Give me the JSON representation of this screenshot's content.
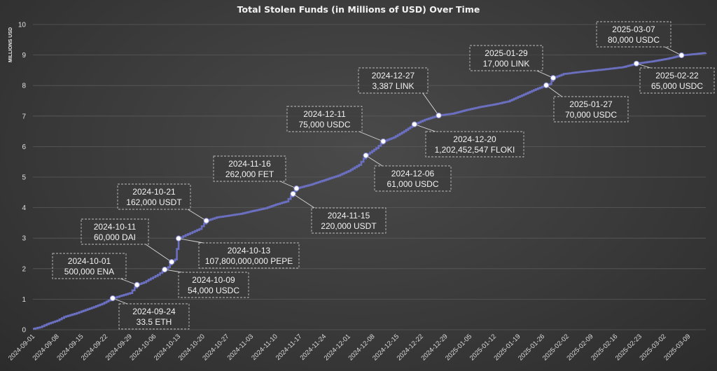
{
  "chart_data": {
    "type": "line",
    "title": "Total Stolen Funds (in Millions of USD) Over Time",
    "ylabel": "MILLIONS USD",
    "xlabel": "",
    "ylim": [
      0,
      10
    ],
    "yticks": [
      0,
      1,
      2,
      3,
      4,
      5,
      6,
      7,
      8,
      9,
      10
    ],
    "xlim": [
      "2024-09-01",
      "2025-03-14"
    ],
    "xticks": [
      "2024-09-01",
      "2024-09-08",
      "2024-09-15",
      "2024-09-22",
      "2024-09-29",
      "2024-10-06",
      "2024-10-13",
      "2024-10-20",
      "2024-10-27",
      "2024-11-03",
      "2024-11-10",
      "2024-11-17",
      "2024-11-24",
      "2024-12-01",
      "2024-12-08",
      "2024-12-15",
      "2024-12-22",
      "2024-12-29",
      "2025-01-05",
      "2025-01-12",
      "2025-01-19",
      "2025-01-26",
      "2025-02-02",
      "2025-02-09",
      "2025-02-16",
      "2025-02-23",
      "2025-03-02",
      "2025-03-09"
    ],
    "grid": true,
    "line_color": "#6b6fc0",
    "series": [
      {
        "points": [
          [
            "2024-09-01",
            0.03
          ],
          [
            "2024-09-03",
            0.08
          ],
          [
            "2024-09-05",
            0.18
          ],
          [
            "2024-09-08",
            0.3
          ],
          [
            "2024-09-10",
            0.42
          ],
          [
            "2024-09-13",
            0.52
          ],
          [
            "2024-09-15",
            0.6
          ],
          [
            "2024-09-18",
            0.72
          ],
          [
            "2024-09-21",
            0.85
          ],
          [
            "2024-09-24",
            1.03
          ],
          [
            "2024-09-26",
            1.1
          ],
          [
            "2024-09-29",
            1.2
          ],
          [
            "2024-10-01",
            1.47
          ],
          [
            "2024-10-03",
            1.55
          ],
          [
            "2024-10-05",
            1.68
          ],
          [
            "2024-10-07",
            1.8
          ],
          [
            "2024-10-09",
            1.97
          ],
          [
            "2024-10-10",
            2.05
          ],
          [
            "2024-10-11",
            2.22
          ],
          [
            "2024-10-12",
            2.3
          ],
          [
            "2024-10-13",
            2.99
          ],
          [
            "2024-10-15",
            3.1
          ],
          [
            "2024-10-17",
            3.2
          ],
          [
            "2024-10-19",
            3.3
          ],
          [
            "2024-10-21",
            3.57
          ],
          [
            "2024-10-24",
            3.68
          ],
          [
            "2024-10-27",
            3.73
          ],
          [
            "2024-10-31",
            3.8
          ],
          [
            "2024-11-03",
            3.88
          ],
          [
            "2024-11-07",
            3.98
          ],
          [
            "2024-11-10",
            4.1
          ],
          [
            "2024-11-13",
            4.2
          ],
          [
            "2024-11-15",
            4.45
          ],
          [
            "2024-11-16",
            4.63
          ],
          [
            "2024-11-20",
            4.75
          ],
          [
            "2024-11-24",
            4.9
          ],
          [
            "2024-11-28",
            5.05
          ],
          [
            "2024-12-01",
            5.2
          ],
          [
            "2024-12-04",
            5.4
          ],
          [
            "2024-12-06",
            5.71
          ],
          [
            "2024-12-09",
            5.95
          ],
          [
            "2024-12-11",
            6.17
          ],
          [
            "2024-12-14",
            6.3
          ],
          [
            "2024-12-17",
            6.5
          ],
          [
            "2024-12-20",
            6.73
          ],
          [
            "2024-12-23",
            6.88
          ],
          [
            "2024-12-27",
            7.02
          ],
          [
            "2024-12-31",
            7.08
          ],
          [
            "2025-01-04",
            7.2
          ],
          [
            "2025-01-08",
            7.3
          ],
          [
            "2025-01-12",
            7.38
          ],
          [
            "2025-01-16",
            7.48
          ],
          [
            "2025-01-20",
            7.68
          ],
          [
            "2025-01-24",
            7.88
          ],
          [
            "2025-01-27",
            8.01
          ],
          [
            "2025-01-28",
            8.05
          ],
          [
            "2025-01-29",
            8.25
          ],
          [
            "2025-02-01",
            8.38
          ],
          [
            "2025-02-06",
            8.45
          ],
          [
            "2025-02-12",
            8.52
          ],
          [
            "2025-02-18",
            8.6
          ],
          [
            "2025-02-22",
            8.72
          ],
          [
            "2025-02-27",
            8.8
          ],
          [
            "2025-03-03",
            8.88
          ],
          [
            "2025-03-07",
            8.99
          ],
          [
            "2025-03-14",
            9.07
          ]
        ]
      }
    ],
    "annotations": [
      {
        "date": "2024-09-24",
        "y": 1.03,
        "line1": "2024-09-24",
        "line2": "33.5 ETH"
      },
      {
        "date": "2024-10-01",
        "y": 1.47,
        "line1": "2024-10-01",
        "line2": "500,000 ENA"
      },
      {
        "date": "2024-10-09",
        "y": 1.97,
        "line1": "2024-10-09",
        "line2": "54,000 USDC"
      },
      {
        "date": "2024-10-11",
        "y": 2.22,
        "line1": "2024-10-11",
        "line2": "60,000 DAI"
      },
      {
        "date": "2024-10-13",
        "y": 2.99,
        "line1": "2024-10-13",
        "line2": "107,800,000,000 PEPE"
      },
      {
        "date": "2024-10-21",
        "y": 3.57,
        "line1": "2024-10-21",
        "line2": "162,000 USDT"
      },
      {
        "date": "2024-11-15",
        "y": 4.45,
        "line1": "2024-11-15",
        "line2": "220,000 USDT"
      },
      {
        "date": "2024-11-16",
        "y": 4.63,
        "line1": "2024-11-16",
        "line2": "262,000 FET"
      },
      {
        "date": "2024-12-06",
        "y": 5.71,
        "line1": "2024-12-06",
        "line2": "61,000 USDC"
      },
      {
        "date": "2024-12-11",
        "y": 6.17,
        "line1": "2024-12-11",
        "line2": "75,000 USDC"
      },
      {
        "date": "2024-12-20",
        "y": 6.73,
        "line1": "2024-12-20",
        "line2": "1,202,452,547 FLOKI"
      },
      {
        "date": "2024-12-27",
        "y": 7.02,
        "line1": "2024-12-27",
        "line2": "3,387 LINK"
      },
      {
        "date": "2025-01-27",
        "y": 8.01,
        "line1": "2025-01-27",
        "line2": "70,000 USDC"
      },
      {
        "date": "2025-01-29",
        "y": 8.25,
        "line1": "2025-01-29",
        "line2": "17,000 LINK"
      },
      {
        "date": "2025-02-22",
        "y": 8.72,
        "line1": "2025-02-22",
        "line2": "65,000 USDC"
      },
      {
        "date": "2025-03-07",
        "y": 8.99,
        "line1": "2025-03-07",
        "line2": "80,000 USDC"
      }
    ]
  }
}
